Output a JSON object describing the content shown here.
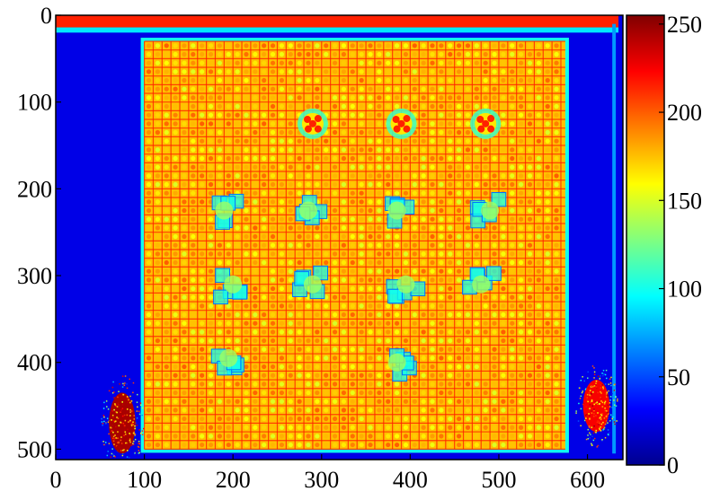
{
  "chart_data": {
    "type": "heatmap",
    "title": "",
    "xlabel": "",
    "ylabel": "",
    "xlim": [
      0,
      640
    ],
    "ylim": [
      512,
      0
    ],
    "x_ticks": [
      0,
      100,
      200,
      300,
      400,
      500,
      600
    ],
    "y_ticks": [
      0,
      100,
      200,
      300,
      400,
      500
    ],
    "colormap": "jet",
    "colorbar": {
      "range": [
        0,
        255
      ],
      "ticks": [
        0,
        50,
        100,
        150,
        200,
        250
      ]
    },
    "regions": {
      "background_level": 25,
      "top_strip_level": 215,
      "sample_square": {
        "x": [
          100,
          575
        ],
        "y": [
          30,
          500
        ],
        "level": 175
      },
      "grid_pitch": 10,
      "hot_spots": [
        {
          "x": [
            60,
            90
          ],
          "y": [
            435,
            505
          ],
          "level": 245
        },
        {
          "x": [
            595,
            625
          ],
          "y": [
            420,
            480
          ],
          "level": 225
        }
      ],
      "defects": [
        {
          "x": 290,
          "y": 125,
          "type": "bright"
        },
        {
          "x": 390,
          "y": 125,
          "type": "bright"
        },
        {
          "x": 485,
          "y": 125,
          "type": "bright"
        },
        {
          "x": 190,
          "y": 225,
          "type": "dark"
        },
        {
          "x": 285,
          "y": 225,
          "type": "dark"
        },
        {
          "x": 385,
          "y": 225,
          "type": "dark"
        },
        {
          "x": 490,
          "y": 225,
          "type": "dark"
        },
        {
          "x": 200,
          "y": 310,
          "type": "dark"
        },
        {
          "x": 290,
          "y": 310,
          "type": "dark"
        },
        {
          "x": 395,
          "y": 310,
          "type": "dark"
        },
        {
          "x": 480,
          "y": 310,
          "type": "dark"
        },
        {
          "x": 195,
          "y": 395,
          "type": "dark"
        },
        {
          "x": 385,
          "y": 400,
          "type": "dark"
        }
      ]
    }
  }
}
